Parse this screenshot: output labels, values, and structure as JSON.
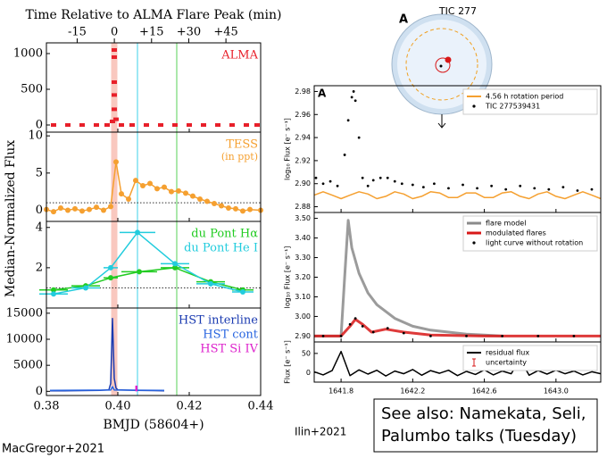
{
  "chart_data": [
    {
      "type": "scatter",
      "title": "Time Relative to ALMA Flare Peak (min)",
      "xlabel": "BMJD (58604+)",
      "ylabel": "Median-Normalized Flux",
      "credit": "MacGregor+2021",
      "xlim": [
        0.38,
        0.44
      ],
      "xticks": [
        0.38,
        {
          "value": 0.4,
          "label": "0.40"
        },
        0.42,
        0.44
      ],
      "x2lim": [
        -27.4,
        59.0
      ],
      "x2ticks": [
        -15,
        0,
        {
          "value": 15,
          "label": "+15"
        },
        {
          "value": 30,
          "label": "+30"
        },
        {
          "value": 45,
          "label": "+45"
        }
      ],
      "vlines": [
        {
          "x": 0.399,
          "color": "#f6a596"
        },
        {
          "x": 0.4055,
          "color": "#7fe0f0"
        },
        {
          "x": 0.4165,
          "color": "#8fe08f"
        }
      ],
      "panels": [
        {
          "ylim": [
            -100,
            1150
          ],
          "yticks": [
            0,
            500,
            1000
          ],
          "series": [
            {
              "name": "ALMA",
              "color": "#e8202a",
              "style": "dash",
              "x": [
                0.382,
                0.386,
                0.39,
                0.394,
                0.397,
                0.3985,
                0.399,
                0.399,
                0.399,
                0.399,
                0.399,
                0.3995,
                0.401,
                0.404,
                0.408,
                0.412,
                0.416,
                0.42,
                0.424,
                0.428,
                0.432,
                0.436,
                0.439
              ],
              "values": [
                0,
                0,
                0,
                0,
                0,
                50,
                1050,
                950,
                600,
                420,
                220,
                80,
                0,
                0,
                0,
                0,
                0,
                0,
                0,
                0,
                0,
                0,
                0
              ]
            }
          ]
        },
        {
          "ylim": [
            -1.5,
            10.5
          ],
          "yticks": [
            0,
            5,
            10
          ],
          "baseline": 1,
          "annotation": "(in ppt)",
          "series": [
            {
              "name": "TESS",
              "color": "#f5a030",
              "style": "linepoints",
              "x": [
                0.38,
                0.382,
                0.384,
                0.386,
                0.388,
                0.39,
                0.392,
                0.394,
                0.396,
                0.398,
                0.3995,
                0.401,
                0.403,
                0.405,
                0.407,
                0.409,
                0.411,
                0.413,
                0.415,
                0.417,
                0.419,
                0.421,
                0.423,
                0.425,
                0.427,
                0.429,
                0.431,
                0.433,
                0.435,
                0.437,
                0.44
              ],
              "values": [
                0.1,
                -0.2,
                0.3,
                0,
                0.2,
                -0.1,
                0.1,
                0.4,
                0,
                0.5,
                6.5,
                2.2,
                1.5,
                4.0,
                3.3,
                3.6,
                2.9,
                3.1,
                2.5,
                2.6,
                2.3,
                1.9,
                1.5,
                1.2,
                0.9,
                0.6,
                0.3,
                0.2,
                -0.1,
                0.1,
                0
              ]
            }
          ]
        },
        {
          "ylim": [
            0,
            4.3
          ],
          "yticks": [
            2,
            4
          ],
          "baseline": 1,
          "series": [
            {
              "name": "du Pont Hα",
              "color": "#22cc22",
              "style": "linepoints",
              "x": [
                0.382,
                0.391,
                0.398,
                0.406,
                0.416,
                0.426,
                0.435
              ],
              "values": [
                0.9,
                1.1,
                1.5,
                1.8,
                2.0,
                1.3,
                0.9
              ],
              "xerr": [
                0.004,
                0.004,
                0.002,
                0.005,
                0.004,
                0.004,
                0.003
              ]
            },
            {
              "name": "du Pont He I",
              "color": "#22ccdd",
              "style": "linepoints",
              "x": [
                0.382,
                0.391,
                0.398,
                0.4055,
                0.416,
                0.426,
                0.435
              ],
              "values": [
                0.7,
                1.0,
                2.0,
                3.75,
                2.2,
                1.2,
                0.8
              ],
              "xerr": [
                0.004,
                0.004,
                0.002,
                0.005,
                0.004,
                0.004,
                0.003
              ]
            }
          ]
        },
        {
          "ylim": [
            -800,
            16000
          ],
          "yticks": [
            0,
            5000,
            10000,
            15000
          ],
          "series": [
            {
              "name": "HST interline",
              "color": "#1a3ab0",
              "style": "line",
              "x": [
                0.381,
                0.385,
                0.39,
                0.395,
                0.3975,
                0.398,
                0.3985,
                0.399,
                0.3995,
                0.4,
                0.405,
                0.41,
                0.413
              ],
              "values": [
                100,
                100,
                150,
                200,
                300,
                1500,
                14000,
                2500,
                600,
                300,
                200,
                150,
                100
              ]
            },
            {
              "name": "HST cont",
              "color": "#2a66e0",
              "style": "line",
              "x": [
                0.381,
                0.398,
                0.3985,
                0.399,
                0.413
              ],
              "values": [
                200,
                250,
                900,
                250,
                200
              ]
            },
            {
              "name": "HST Si IV",
              "color": "#dd22cc",
              "style": "stem",
              "x": [
                0.4052
              ],
              "values": [
                1100
              ]
            }
          ]
        }
      ]
    },
    {
      "type": "scatter",
      "credit": "Ilin+2021",
      "xlim": [
        1641.65,
        1643.25
      ],
      "xticks": [
        1641.8,
        1642.2,
        1642.6,
        {
          "value": 1643.0,
          "label": "1643.0"
        }
      ],
      "panels": [
        {
          "label": "A",
          "ylabel": "log₁₀ Flux [e⁻ s⁻¹]",
          "ylim": [
            2.875,
            2.985
          ],
          "yticks": [
            2.88,
            {
              "value": 2.9,
              "label": "2.90"
            },
            2.92,
            2.94,
            2.96,
            2.98
          ],
          "series": [
            {
              "name": "4.56 h rotation period",
              "color": "#f5a030",
              "style": "line",
              "x": [
                1641.65,
                1641.7,
                1641.75,
                1641.8,
                1641.85,
                1641.9,
                1641.95,
                1642.0,
                1642.05,
                1642.1,
                1642.15,
                1642.2,
                1642.25,
                1642.3,
                1642.35,
                1642.4,
                1642.45,
                1642.5,
                1642.55,
                1642.6,
                1642.65,
                1642.7,
                1642.75,
                1642.8,
                1642.85,
                1642.9,
                1642.95,
                1643.0,
                1643.05,
                1643.1,
                1643.15,
                1643.2,
                1643.25
              ],
              "values": [
                2.89,
                2.893,
                2.89,
                2.887,
                2.89,
                2.893,
                2.891,
                2.887,
                2.889,
                2.893,
                2.891,
                2.887,
                2.889,
                2.893,
                2.892,
                2.888,
                2.888,
                2.892,
                2.892,
                2.888,
                2.888,
                2.892,
                2.893,
                2.889,
                2.887,
                2.891,
                2.893,
                2.889,
                2.887,
                2.89,
                2.893,
                2.89,
                2.887
              ]
            },
            {
              "name": "TIC 277539431",
              "color": "#000000",
              "style": "points",
              "x": [
                1641.66,
                1641.7,
                1641.74,
                1641.78,
                1641.82,
                1641.84,
                1641.86,
                1641.87,
                1641.88,
                1641.9,
                1641.92,
                1641.95,
                1641.98,
                1642.02,
                1642.06,
                1642.1,
                1642.14,
                1642.2,
                1642.26,
                1642.32,
                1642.4,
                1642.48,
                1642.56,
                1642.64,
                1642.72,
                1642.8,
                1642.88,
                1642.96,
                1643.04,
                1643.12,
                1643.2
              ],
              "values": [
                2.905,
                2.9,
                2.902,
                2.898,
                2.925,
                2.955,
                2.975,
                2.98,
                2.972,
                2.94,
                2.905,
                2.898,
                2.903,
                2.905,
                2.905,
                2.902,
                2.9,
                2.899,
                2.897,
                2.9,
                2.896,
                2.899,
                2.896,
                2.898,
                2.895,
                2.898,
                2.896,
                2.895,
                2.897,
                2.894,
                2.895
              ]
            }
          ]
        },
        {
          "ylabel": "log₁₀ Flux [e⁻ s⁻¹]",
          "ylim": [
            2.87,
            3.53
          ],
          "yticks": [
            {
              "value": 2.9,
              "label": "2.90"
            },
            {
              "value": 3,
              "label": "3.00"
            },
            {
              "value": 3.1,
              "label": "3.10"
            },
            {
              "value": 3.2,
              "label": "3.20"
            },
            {
              "value": 3.3,
              "label": "3.30"
            },
            {
              "value": 3.4,
              "label": "3.40"
            },
            {
              "value": 3.5,
              "label": "3.50"
            }
          ],
          "series": [
            {
              "name": "flare model",
              "color": "#8a8a8a",
              "style": "thick",
              "x": [
                1641.65,
                1641.75,
                1641.8,
                1641.82,
                1641.84,
                1641.86,
                1641.9,
                1641.95,
                1642.0,
                1642.1,
                1642.2,
                1642.3,
                1642.4,
                1642.5,
                1642.6,
                1642.7
              ],
              "values": [
                2.9,
                2.9,
                2.9,
                3.2,
                3.49,
                3.35,
                3.22,
                3.12,
                3.06,
                2.99,
                2.95,
                2.93,
                2.92,
                2.91,
                2.905,
                2.9
              ]
            },
            {
              "name": "modulated flares",
              "color": "#d81818",
              "style": "thick",
              "x": [
                1641.65,
                1641.8,
                1641.85,
                1641.88,
                1641.92,
                1641.97,
                1642.05,
                1642.15,
                1642.3,
                1642.6,
                1643.0,
                1643.25
              ],
              "values": [
                2.9,
                2.9,
                2.95,
                2.985,
                2.96,
                2.92,
                2.935,
                2.92,
                2.905,
                2.9,
                2.9,
                2.9
              ]
            },
            {
              "name": "light curve without rotation",
              "color": "#000000",
              "style": "points",
              "x": [
                1641.7,
                1641.8,
                1641.85,
                1641.88,
                1641.92,
                1641.98,
                1642.06,
                1642.15,
                1642.3,
                1642.5,
                1642.7,
                1642.9,
                1643.1
              ],
              "values": [
                2.9,
                2.9,
                2.96,
                2.99,
                2.95,
                2.92,
                2.94,
                2.915,
                2.9,
                2.9,
                2.9,
                2.9,
                2.9
              ]
            }
          ]
        },
        {
          "ylabel": "Flux [e⁻ s⁻¹]",
          "ylim": [
            -25,
            80
          ],
          "yticks": [
            0,
            50
          ],
          "series": [
            {
              "name": "residual flux",
              "color": "#000000",
              "style": "line",
              "x": [
                1641.65,
                1641.7,
                1641.75,
                1641.8,
                1641.85,
                1641.9,
                1641.95,
                1642.0,
                1642.05,
                1642.1,
                1642.15,
                1642.2,
                1642.25,
                1642.3,
                1642.35,
                1642.4,
                1642.45,
                1642.5,
                1642.55,
                1642.6,
                1642.65,
                1642.7,
                1642.75,
                1642.8,
                1642.85,
                1642.9,
                1642.95,
                1643.0,
                1643.05,
                1643.1,
                1643.15,
                1643.2,
                1643.25
              ],
              "values": [
                2,
                -6,
                5,
                55,
                -8,
                7,
                -4,
                6,
                -9,
                4,
                -3,
                8,
                -7,
                5,
                -2,
                6,
                -8,
                3,
                -5,
                7,
                -6,
                4,
                -3,
                35,
                -7,
                5,
                -4,
                6,
                -3,
                4,
                -6,
                2,
                -3
              ]
            },
            {
              "name": "uncertainty",
              "color": "#d81818",
              "style": "errorbar",
              "x": [
                1642.92
              ],
              "values": [
                30
              ],
              "err": [
                15
              ]
            }
          ]
        }
      ]
    }
  ],
  "inset": {
    "label": "A",
    "title": "TIC 277"
  },
  "note": [
    "See also: Namekata, Seli,",
    "Palumbo talks (Tuesday)"
  ]
}
